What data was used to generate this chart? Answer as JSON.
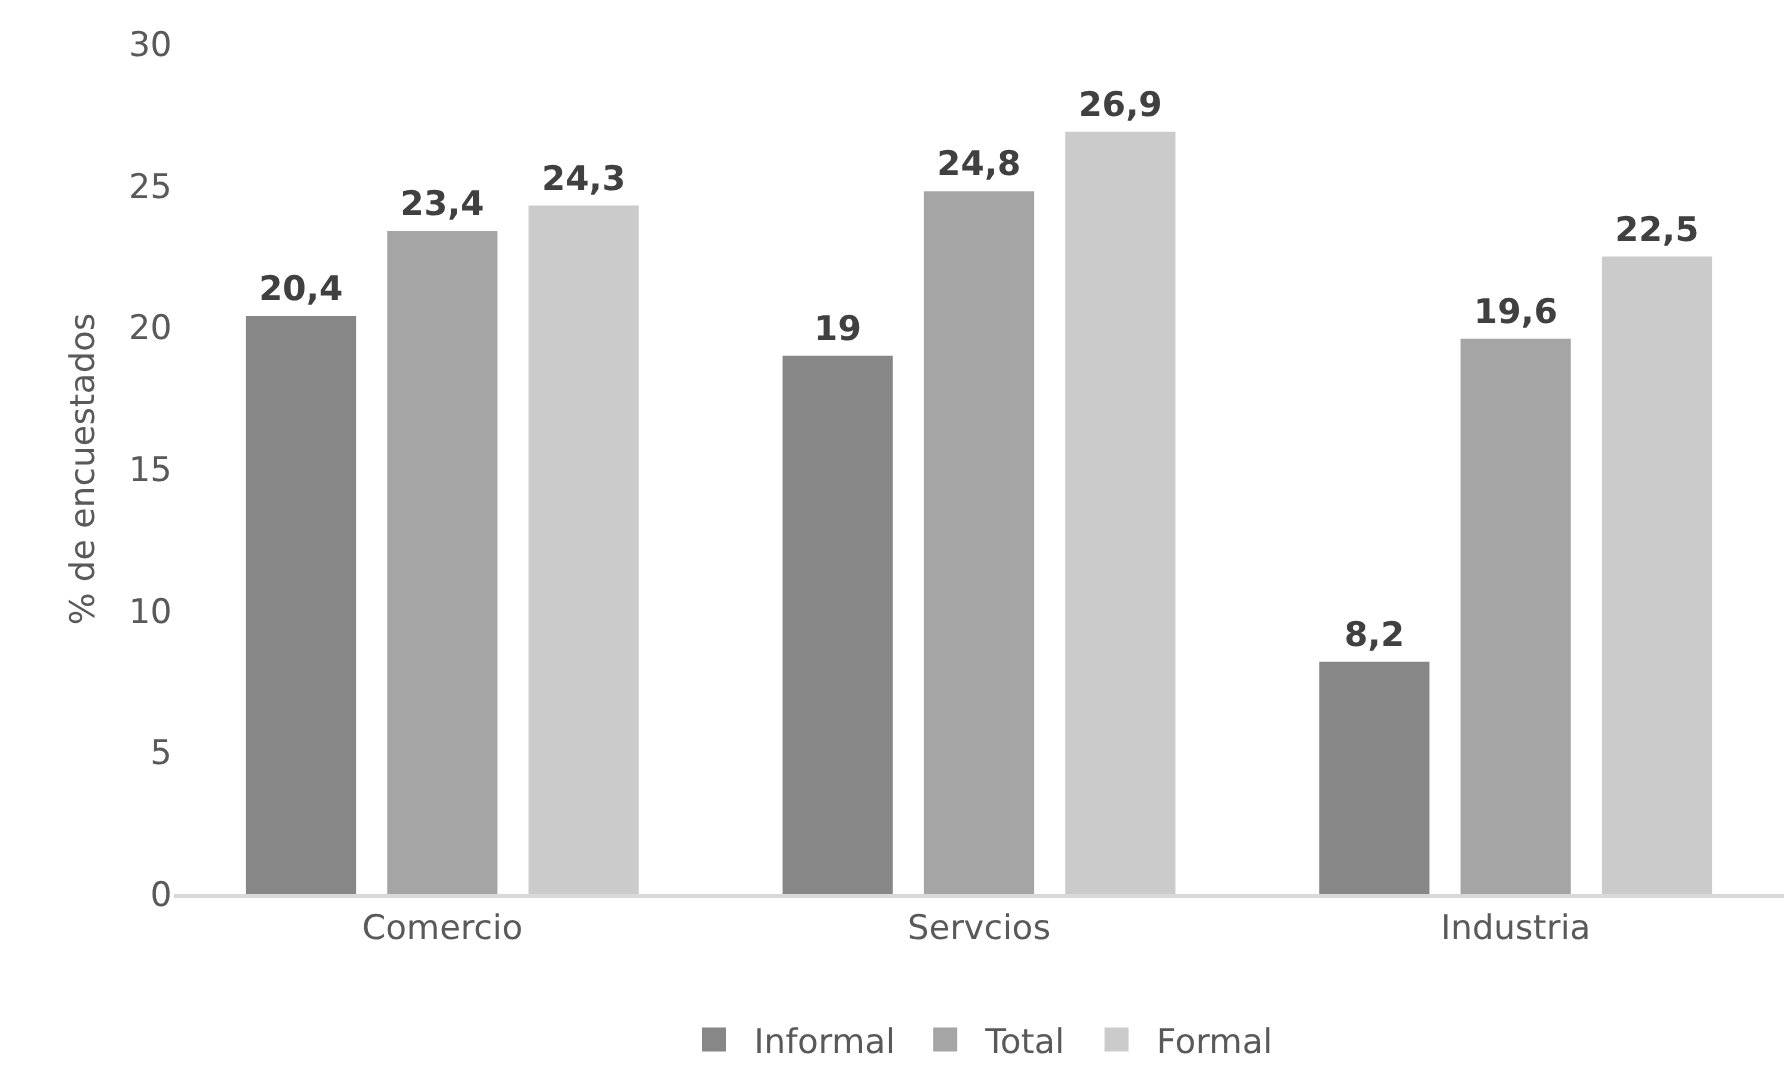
{
  "chart_data": {
    "type": "bar",
    "ylabel": "% de encuestados",
    "categories": [
      "Comercio",
      "Servcios",
      "Industria"
    ],
    "series": [
      {
        "name": "Informal",
        "color": "#878787",
        "values": [
          20.4,
          19,
          8.2
        ],
        "value_labels": [
          "20,4",
          "19",
          "8,2"
        ]
      },
      {
        "name": "Total",
        "color": "#a5a5a5",
        "values": [
          23.4,
          24.8,
          19.6
        ],
        "value_labels": [
          "23,4",
          "24,8",
          "19,6"
        ]
      },
      {
        "name": "Formal",
        "color": "#cbcbcb",
        "values": [
          24.3,
          26.9,
          22.5
        ],
        "value_labels": [
          "24,3",
          "26,9",
          "22,5"
        ]
      }
    ],
    "ylim": [
      0,
      30
    ],
    "yticks": [
      0,
      5,
      10,
      15,
      20,
      25,
      30
    ],
    "grid": false,
    "legend": "bottom"
  }
}
